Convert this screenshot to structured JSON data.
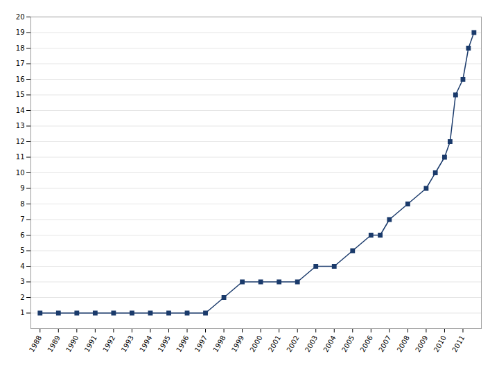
{
  "chart_data": {
    "type": "line",
    "x": [
      1988,
      1989,
      1990,
      1991,
      1992,
      1993,
      1994,
      1995,
      1996,
      1997,
      1998,
      1999,
      2000,
      2001,
      2002,
      2003,
      2004,
      2005,
      2006,
      2006.5,
      2007,
      2008,
      2009,
      2009.5,
      2010,
      2010.3,
      2010.6,
      2011,
      2011.3,
      2011.6
    ],
    "values": [
      1,
      1,
      1,
      1,
      1,
      1,
      1,
      1,
      1,
      1,
      2,
      3,
      3,
      3,
      3,
      4,
      4,
      5,
      6,
      6,
      7,
      8,
      9,
      10,
      11,
      12,
      15,
      16,
      18,
      19
    ],
    "color": "#1a3a6b",
    "marker": "square",
    "xlim": [
      1987.5,
      2012.0
    ],
    "xticks": [
      1988,
      1989,
      1990,
      1991,
      1992,
      1993,
      1994,
      1995,
      1996,
      1997,
      1998,
      1999,
      2000,
      2001,
      2002,
      2003,
      2004,
      2005,
      2006,
      2007,
      2008,
      2009,
      2010,
      2011
    ],
    "ylim": [
      0,
      20
    ],
    "yticks": [
      1,
      2,
      3,
      4,
      5,
      6,
      7,
      8,
      9,
      10,
      11,
      12,
      13,
      14,
      15,
      16,
      17,
      18,
      19,
      20
    ],
    "grid": "y"
  }
}
